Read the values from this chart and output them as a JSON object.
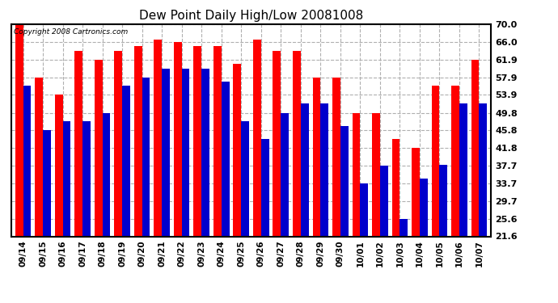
{
  "title": "Dew Point Daily High/Low 20081008",
  "copyright": "Copyright 2008 Cartronics.com",
  "dates": [
    "09/14",
    "09/15",
    "09/16",
    "09/17",
    "09/18",
    "09/19",
    "09/20",
    "09/21",
    "09/22",
    "09/23",
    "09/24",
    "09/25",
    "09/26",
    "09/27",
    "09/28",
    "09/29",
    "09/30",
    "10/01",
    "10/02",
    "10/03",
    "10/04",
    "10/05",
    "10/06",
    "10/07"
  ],
  "highs": [
    70.0,
    57.9,
    53.9,
    63.9,
    61.9,
    63.9,
    65.0,
    66.5,
    66.0,
    65.0,
    65.0,
    60.9,
    66.5,
    63.9,
    63.9,
    57.9,
    57.9,
    49.8,
    49.8,
    43.9,
    41.8,
    55.9,
    55.9,
    61.9
  ],
  "lows": [
    55.9,
    45.8,
    47.8,
    47.8,
    49.8,
    55.9,
    57.9,
    59.9,
    59.9,
    59.9,
    56.9,
    47.8,
    43.9,
    49.8,
    51.9,
    51.9,
    46.8,
    33.7,
    37.7,
    25.6,
    34.7,
    38.0,
    52.0,
    51.9
  ],
  "high_color": "#ff0000",
  "low_color": "#0000cc",
  "bg_color": "#ffffff",
  "grid_color": "#b0b0b0",
  "yticks": [
    21.6,
    25.6,
    29.7,
    33.7,
    37.7,
    41.8,
    45.8,
    49.8,
    53.9,
    57.9,
    61.9,
    66.0,
    70.0
  ],
  "ymin": 21.6,
  "ymax": 70.0,
  "bar_width": 0.4
}
